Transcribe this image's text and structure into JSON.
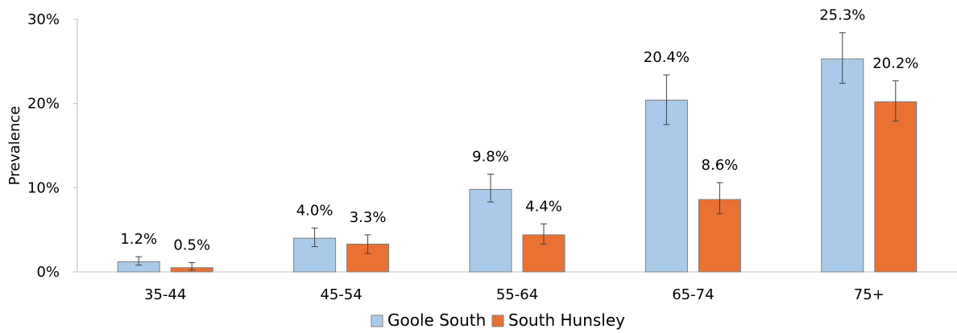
{
  "chart_data": {
    "type": "bar",
    "categories": [
      "35-44",
      "45-54",
      "55-64",
      "65-74",
      "75+"
    ],
    "series": [
      {
        "name": "Goole South",
        "values": [
          1.2,
          4.0,
          9.8,
          20.4,
          25.3
        ],
        "labels": [
          "1.2%",
          "4.0%",
          "9.8%",
          "20.4%",
          "25.3%"
        ],
        "error_low": [
          0.8,
          3.0,
          8.3,
          17.5,
          22.4
        ],
        "error_high": [
          1.8,
          5.2,
          11.6,
          23.4,
          28.4
        ],
        "color": "#a9cbe9"
      },
      {
        "name": "South Hunsley",
        "values": [
          0.5,
          3.3,
          4.4,
          8.6,
          20.2
        ],
        "labels": [
          "0.5%",
          "3.3%",
          "4.4%",
          "8.6%",
          "20.2%"
        ],
        "error_low": [
          0.2,
          2.2,
          3.3,
          6.9,
          17.9
        ],
        "error_high": [
          1.1,
          4.4,
          5.7,
          10.6,
          22.7
        ],
        "color": "#e97132"
      }
    ],
    "ylabel": "Prevalence",
    "ylim": [
      0,
      30
    ],
    "yticks": [
      0,
      10,
      20,
      30
    ],
    "ytick_labels": [
      "0%",
      "10%",
      "20%",
      "30%"
    ],
    "grid": false,
    "legend_position": "bottom"
  }
}
